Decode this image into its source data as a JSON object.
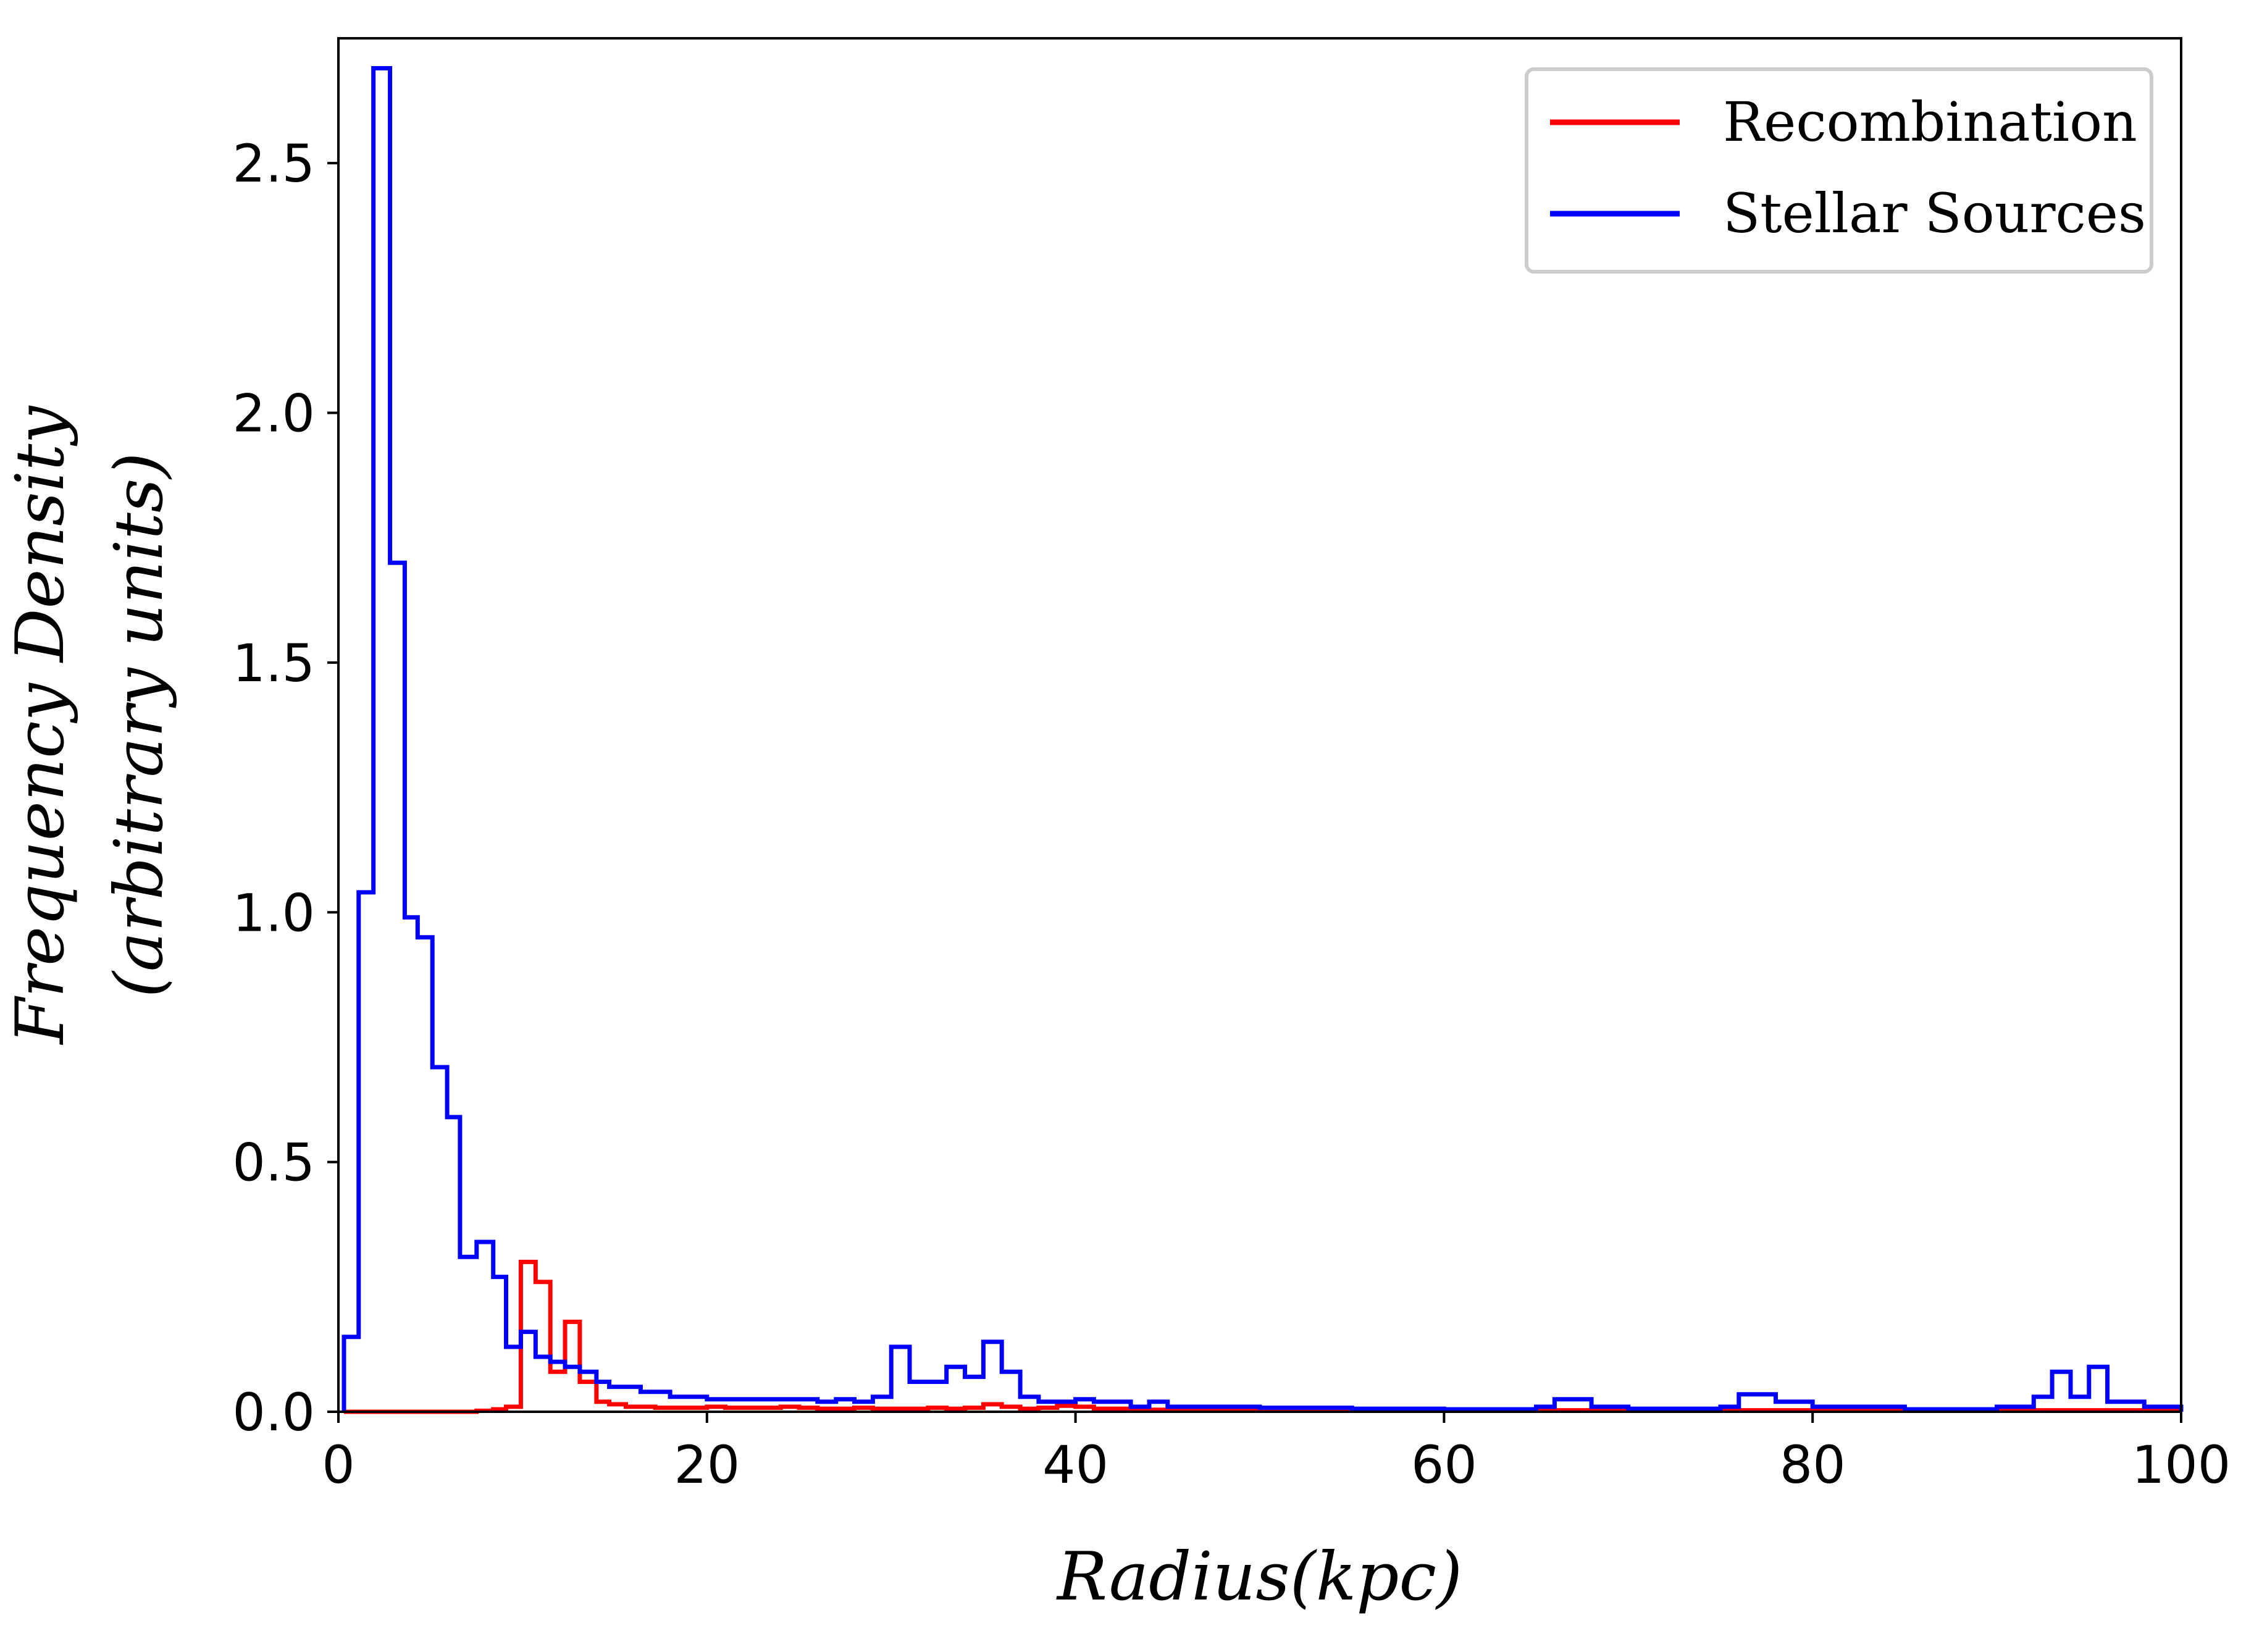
{
  "chart_data": {
    "type": "line",
    "xlabel": "Radius(kpc)",
    "ylabel": [
      "Frequency Density",
      "(arbitrary units)"
    ],
    "xlim": [
      0,
      100
    ],
    "ylim": [
      0,
      2.75
    ],
    "xticks": [
      0,
      20,
      40,
      60,
      80,
      100
    ],
    "xtick_labels": [
      "0",
      "20",
      "40",
      "60",
      "80",
      "100"
    ],
    "yticks": [
      0,
      0.5,
      1,
      1.5,
      2,
      2.5
    ],
    "ytick_labels": [
      "0.0",
      "0.5",
      "1.0",
      "1.5",
      "2.0",
      "2.5"
    ],
    "grid": false,
    "legend_position": "upper-right",
    "bin_edges_x": [
      0.3,
      1.1,
      1.9,
      2.8,
      3.6,
      4.3,
      5.1,
      5.9,
      6.6,
      7.5,
      8.4,
      9.1,
      9.9,
      10.7,
      11.5,
      12.3,
      13.1,
      14.0,
      14.7,
      15.6,
      16.4,
      17.2,
      18.0,
      19.0,
      20.0,
      21.0,
      22.0,
      24.0,
      25.0,
      26.0,
      27.0,
      28.0,
      29.0,
      30.0,
      31.0,
      32.0,
      33.0,
      34.0,
      35.0,
      36.0,
      37.0,
      38.0,
      39.0,
      40.0,
      41.0,
      42.0,
      43.0,
      44.0,
      45.0,
      47.0,
      50.0,
      55.0,
      60.0,
      65.0,
      66.0,
      68.0,
      70.0,
      75.0,
      76.0,
      78.0,
      80.0,
      85.0,
      90.0,
      92.0,
      93.0,
      94.0,
      95.0,
      96.0,
      98.0,
      100.0
    ],
    "series": [
      {
        "name": "Recombination",
        "color": "#ff0000",
        "values": [
          0,
          0,
          0,
          0,
          0,
          0,
          0,
          0,
          0,
          0.002,
          0.005,
          0.01,
          0.3,
          0.26,
          0.08,
          0.18,
          0.06,
          0.02,
          0.015,
          0.01,
          0.01,
          0.008,
          0.008,
          0.008,
          0.01,
          0.008,
          0.008,
          0.01,
          0.008,
          0.006,
          0.006,
          0.008,
          0.006,
          0.006,
          0.006,
          0.008,
          0.006,
          0.008,
          0.015,
          0.01,
          0.006,
          0.008,
          0.012,
          0.01,
          0.006,
          0.006,
          0.005,
          0.004,
          0.004,
          0.004,
          0.004,
          0.003,
          0.003,
          0.003,
          0.003,
          0.003,
          0.003,
          0.003,
          0.003,
          0.003,
          0.003,
          0.003,
          0.003,
          0.003,
          0.003,
          0.003,
          0.003,
          0.003,
          0.002
        ]
      },
      {
        "name": "Stellar Sources",
        "color": "#0000ff",
        "values": [
          0.15,
          1.04,
          2.69,
          1.7,
          0.99,
          0.95,
          0.69,
          0.59,
          0.31,
          0.34,
          0.27,
          0.13,
          0.16,
          0.11,
          0.1,
          0.09,
          0.08,
          0.06,
          0.05,
          0.05,
          0.04,
          0.04,
          0.03,
          0.03,
          0.025,
          0.025,
          0.025,
          0.025,
          0.025,
          0.02,
          0.025,
          0.02,
          0.03,
          0.13,
          0.06,
          0.06,
          0.09,
          0.07,
          0.14,
          0.08,
          0.03,
          0.02,
          0.02,
          0.025,
          0.02,
          0.02,
          0.01,
          0.02,
          0.01,
          0.01,
          0.008,
          0.006,
          0.005,
          0.01,
          0.025,
          0.01,
          0.006,
          0.01,
          0.035,
          0.02,
          0.01,
          0.005,
          0.01,
          0.03,
          0.08,
          0.03,
          0.09,
          0.02,
          0.01
        ]
      }
    ]
  }
}
